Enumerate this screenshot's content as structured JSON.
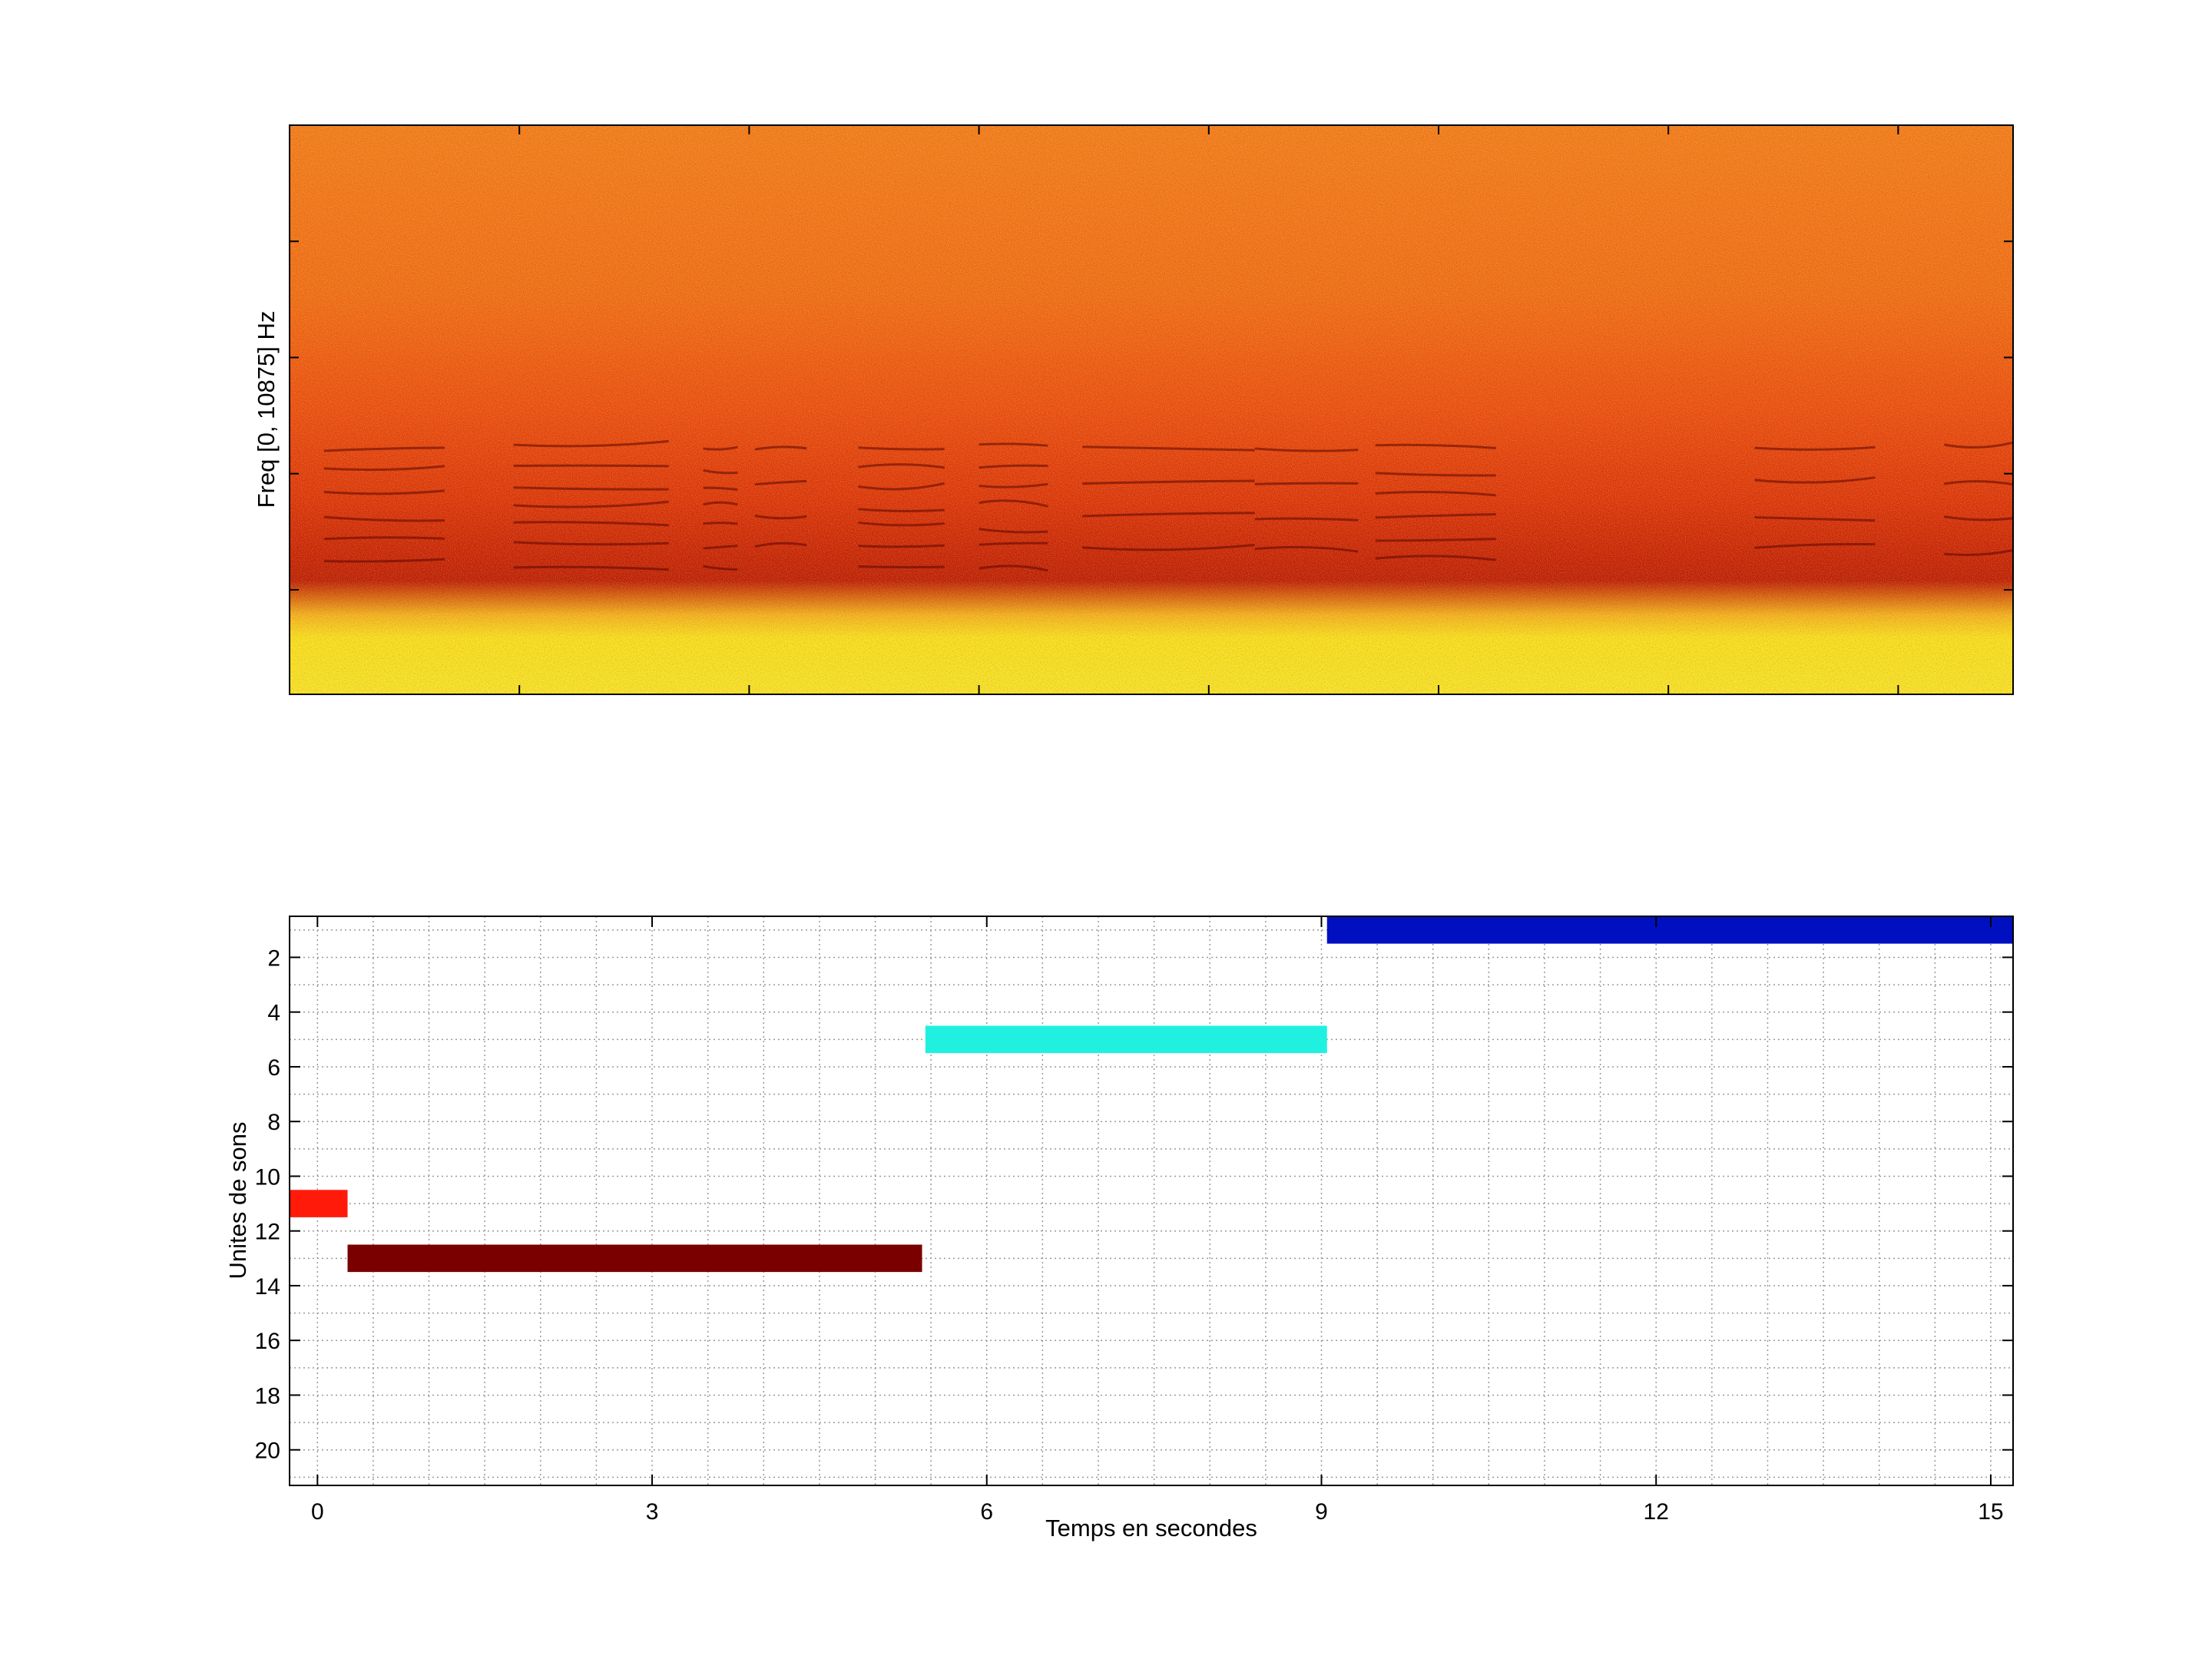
{
  "chart_data": [
    {
      "type": "heatmap",
      "subtype": "spectrogram",
      "ylabel": "Freq [0, 10875] Hz",
      "xlabel": "",
      "x_tick_labels_visible": false,
      "y_tick_labels_visible": false,
      "colormap": "hot",
      "colors": {
        "low_freq_band": "#f4e020",
        "mid": "#e8400e",
        "dark_harmonics": "#7a0a00",
        "high": "#f0801a"
      }
    },
    {
      "type": "bar",
      "subtype": "horizontal-segments",
      "xlabel": "Temps en secondes",
      "ylabel": "Unites de sons",
      "xlim": [
        -0.25,
        15.2
      ],
      "ylim": [
        21.3,
        0.5
      ],
      "x_ticks": [
        0,
        3,
        6,
        9,
        12,
        15
      ],
      "y_ticks": [
        2,
        4,
        6,
        8,
        10,
        12,
        14,
        16,
        18,
        20
      ],
      "grid": true,
      "segments": [
        {
          "unit": 1,
          "start": 9.05,
          "end": 15.2,
          "color": "#0010c0"
        },
        {
          "unit": 5,
          "start": 5.45,
          "end": 9.05,
          "color": "#20f0e0"
        },
        {
          "unit": 11,
          "start": -0.25,
          "end": 0.27,
          "color": "#ff1a0a"
        },
        {
          "unit": 13,
          "start": 0.27,
          "end": 5.42,
          "color": "#7a0000"
        }
      ]
    }
  ]
}
